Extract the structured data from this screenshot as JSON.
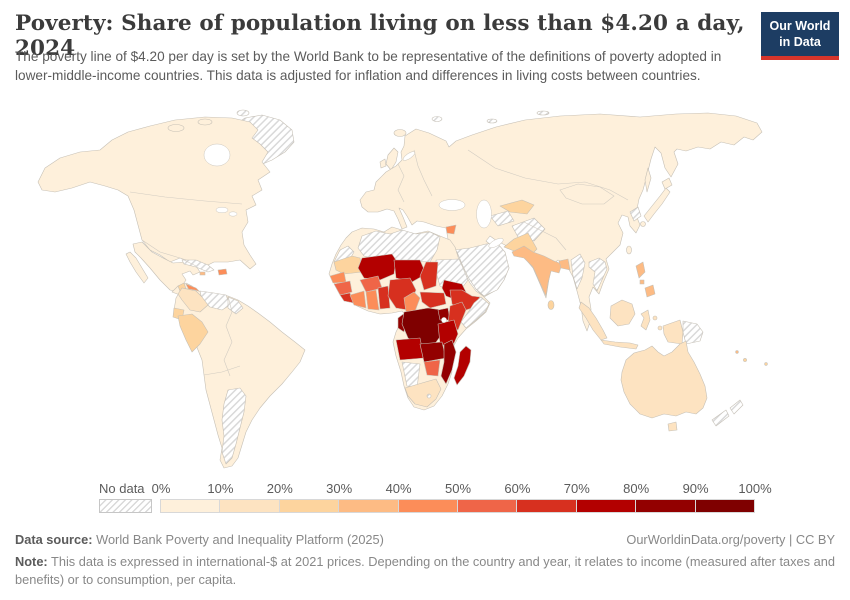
{
  "chart_data": {
    "type": "choropleth",
    "title": "Poverty: Share of population living on less than $4.20 a day, 2024",
    "subtitle": "The poverty line of $4.20 per day is set by the World Bank to be representative of the definitions of poverty adopted in lower-middle-income countries. This data is adjusted for inflation and differences in living costs between countries.",
    "year": "2024",
    "unit": "share of population (%)",
    "legend": {
      "no_data_label": "No data",
      "tick_labels": [
        "0%",
        "10%",
        "20%",
        "30%",
        "40%",
        "50%",
        "60%",
        "70%",
        "80%",
        "90%",
        "100%"
      ],
      "colors": [
        "#FEF0DB",
        "#FDE3C1",
        "#FDD49E",
        "#FDBB84",
        "#FC8D59",
        "#EF6548",
        "#D7301F",
        "#B30000",
        "#930000",
        "#7F0000"
      ]
    },
    "values": {
      "United States": "0-10%",
      "Canada": "0-10%",
      "Greenland": "No data",
      "Mexico": "0-10%",
      "Guatemala": "20-30%",
      "Honduras": "40-50%",
      "Nicaragua": "30-40%",
      "Cuba": "No data",
      "Haiti": "40-50%",
      "Colombia": "10-20%",
      "Venezuela": "No data",
      "Guyana": "No data",
      "Ecuador": "20-30%",
      "Peru": "20-30%",
      "Brazil": "0-10%",
      "Bolivia": "0-10%",
      "Paraguay": "0-10%",
      "Chile": "0-10%",
      "Argentina": "No data",
      "Uruguay": "0-10%",
      "Iceland": "0-10%",
      "United Kingdom": "0-10%",
      "European countries": "0-10%",
      "Russia": "0-10%",
      "Turkey": "0-10%",
      "Syria": "40-50%",
      "Iraq": "0-10%",
      "Iran": "0-10%",
      "Saudi Arabia": "No data",
      "Yemen": "No data",
      "Oman": "No data",
      "Kazakhstan": "0-10%",
      "Turkmenistan": "No data",
      "Uzbekistan": "20-30%",
      "Tajikistan": "20-30%",
      "Kyrgyzstan": "20-30%",
      "Afghanistan": "No data",
      "Pakistan": "20-30%",
      "India": "30-40%",
      "Sri Lanka": "20-30%",
      "Bangladesh": "30-40%",
      "Myanmar": "No data",
      "Thailand": "0-10%",
      "Laos": "No data",
      "Vietnam": "No data",
      "Cambodia": "0-10%",
      "China": "0-10%",
      "Mongolia": "0-10%",
      "North Korea": "No data",
      "South Korea": "0-10%",
      "Japan": "0-10%",
      "Philippines": "30-40%",
      "Malaysia": "10-20%",
      "Indonesia": "10-20%",
      "Papua New Guinea": "No data",
      "Australia": "10-20%",
      "New Zealand": "No data",
      "Morocco": "0-10%",
      "Algeria": "No data",
      "Libya": "No data",
      "Western Sahara": "No data",
      "Egypt": "0-10%",
      "Mauritania": "20-30%",
      "Senegal": "40-50%",
      "Guinea": "50-60%",
      "Sierra Leone": "60-70%",
      "Liberia": "50-60%",
      "Cote d'Ivoire": "40-50%",
      "Ghana": "40-50%",
      "Togo": "60-70%",
      "Benin": "60-70%",
      "Burkina Faso": "50-60%",
      "Mali": "70-80%",
      "Niger": "70-80%",
      "Nigeria": "60-70%",
      "Chad": "60-70%",
      "Cameroon": "40-50%",
      "Central African Republic": "60-70%",
      "Sudan": "No data",
      "South Sudan": "70-80%",
      "Ethiopia": "60-70%",
      "Somalia": "No data",
      "Kenya": "60-70%",
      "Uganda": "80-90%",
      "DR Congo": "90-100%",
      "Congo": "80-90%",
      "Angola": "70-80%",
      "Zambia": "80-90%",
      "Tanzania": "70-80%",
      "Malawi": "80-90%",
      "Mozambique": "80-90%",
      "Zimbabwe": "50-60%",
      "Madagascar": "70-80%",
      "Namibia": "No data",
      "Botswana": "0-10%",
      "South Africa": "10-20%",
      "Fiji": "20-30%"
    }
  },
  "logo": {
    "line1": "Our World",
    "line2": "in Data",
    "bg": "#1d3d63",
    "accent": "#d7352b"
  },
  "footer": {
    "data_source_label": "Data source:",
    "data_source": "World Bank Poverty and Inequality Platform (2025)",
    "link": "OurWorldinData.org/poverty",
    "separator": " | ",
    "license": "CC BY",
    "note_label": "Note:",
    "note": "This data is expressed in international-$ at 2021 prices. Depending on the country and year, it relates to income (measured after taxes and benefits) or to consumption, per capita."
  },
  "map": {
    "stroke": "#c6c0b6",
    "hatch_line": "#d9d9d9",
    "ocean": "#ffffff"
  }
}
